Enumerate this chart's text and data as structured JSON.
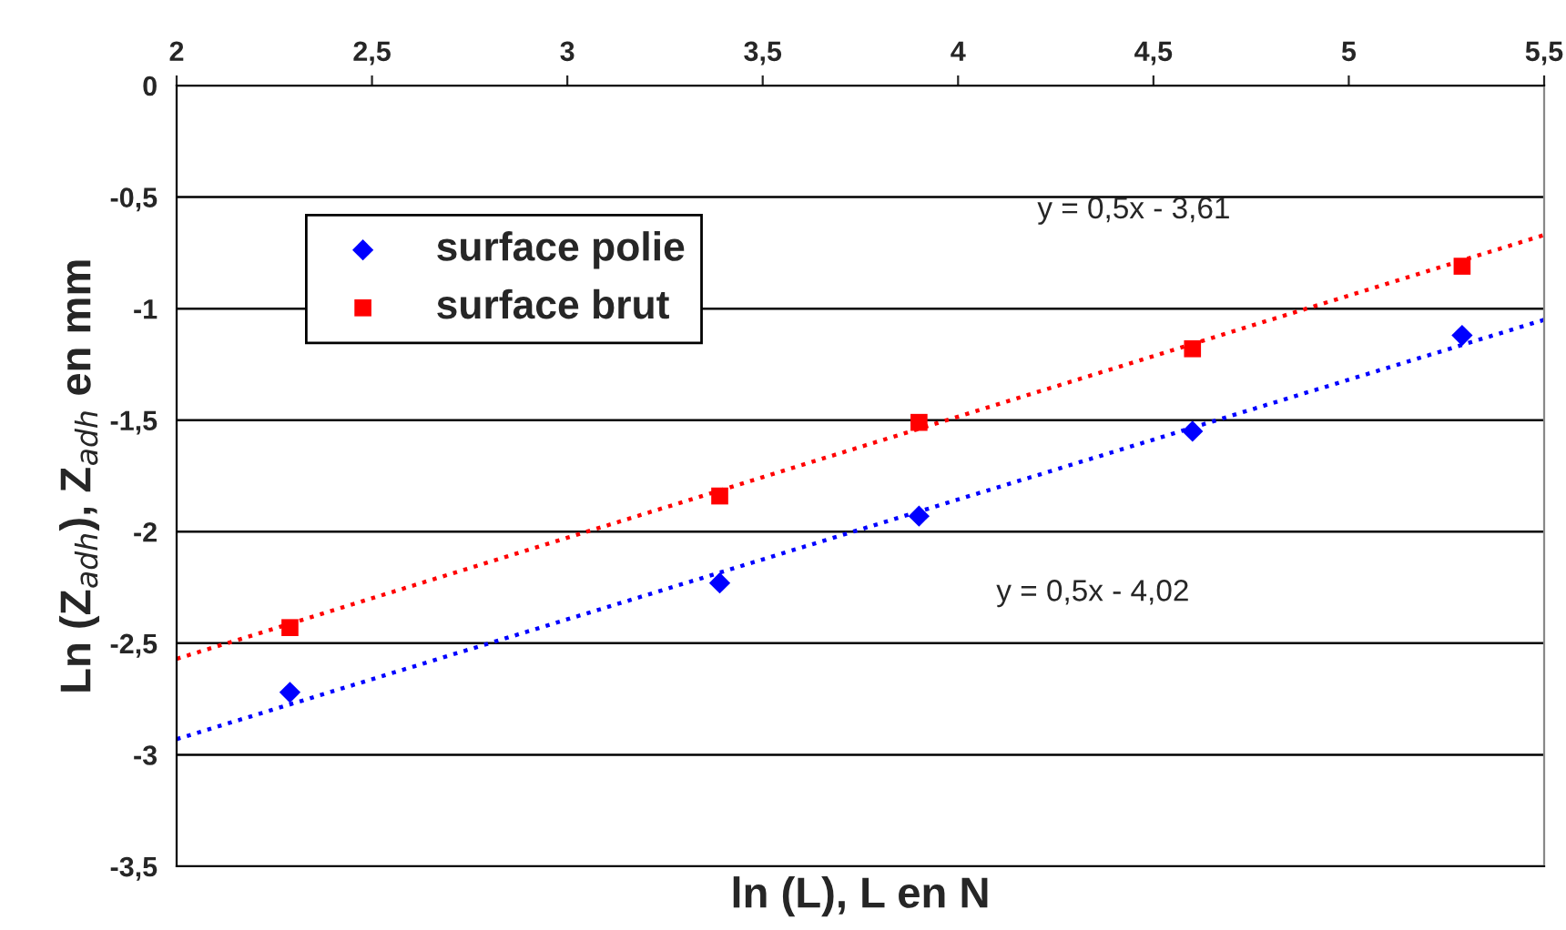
{
  "chart_data": {
    "type": "scatter",
    "xlabel": "ln (L), L en N",
    "ylabel": "Ln (Z$_{adh}$), Z$_{adh}$ en mm",
    "xlim": [
      2,
      5.5
    ],
    "ylim": [
      -3.5,
      0
    ],
    "xticks": [
      2,
      {
        "value": 2.5,
        "label": "2,5"
      },
      3,
      {
        "value": 3.5,
        "label": "3,5"
      },
      4,
      {
        "value": 4.5,
        "label": "4,5"
      },
      5,
      {
        "value": 5.5,
        "label": "5,5"
      }
    ],
    "yticks": [
      {
        "value": -3.5,
        "label": "-3,5"
      },
      -3,
      {
        "value": -2.5,
        "label": "-2,5"
      },
      -2,
      {
        "value": -1.5,
        "label": "-1,5"
      },
      -1,
      {
        "value": -0.5,
        "label": "-0,5"
      },
      0
    ],
    "grid": "y",
    "legend": "top left",
    "series": [
      {
        "name": "surface polie",
        "color": "#0000ff",
        "marker": "diamond",
        "x": [
          2.29,
          3.39,
          3.9,
          4.6,
          5.29
        ],
        "values": [
          -2.72,
          -2.23,
          -1.93,
          -1.55,
          -1.12
        ]
      },
      {
        "name": "surface brut",
        "color": "#ff0000",
        "marker": "square",
        "x": [
          2.29,
          3.39,
          3.9,
          4.6,
          5.29
        ],
        "values": [
          -2.43,
          -1.84,
          -1.51,
          -1.18,
          -0.81
        ]
      },
      {
        "type": "line",
        "color": "#0000ff",
        "line_style": "dotted",
        "x": [
          2,
          5.5
        ],
        "values": [
          -2.93,
          -1.05
        ]
      },
      {
        "type": "line",
        "color": "#ff0000",
        "line_style": "dotted",
        "x": [
          2,
          5.5
        ],
        "values": [
          -2.57,
          -0.67
        ]
      }
    ],
    "annotations": [
      "y = 0,5x - 3,61",
      "y = 0,5x - 4,02"
    ]
  }
}
